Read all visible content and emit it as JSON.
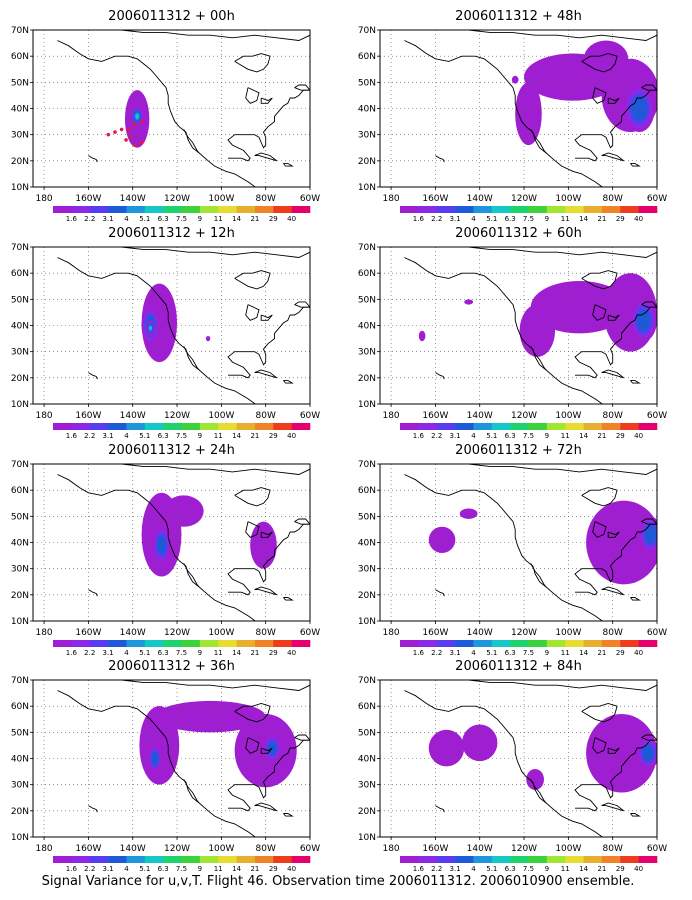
{
  "caption": "Signal Variance for u,v,T. Flight 46. Observation time 2006011312. 2006010900 ensemble.",
  "colorbar": {
    "colors": [
      "#a01ed2",
      "#8c28e6",
      "#5a3cf0",
      "#1e5ad8",
      "#1e96dc",
      "#14c8c8",
      "#1ed26e",
      "#3cd23c",
      "#a0e632",
      "#e6dc32",
      "#e6af2d",
      "#f08228",
      "#f03c1e",
      "#e6006e"
    ],
    "labels": [
      "1.6",
      "2.2",
      "3.1",
      "4",
      "5.1",
      "6.3",
      "7.5",
      "9",
      "11",
      "14",
      "21",
      "29",
      "40"
    ]
  },
  "chart_data": [
    {
      "type": "heatmap",
      "title": "2006011312 + 00h",
      "xlim": [
        175,
        300
      ],
      "ylim": [
        10,
        70
      ],
      "x_ticks": [
        "180",
        "160W",
        "140W",
        "120W",
        "100W",
        "80W",
        "60W"
      ],
      "y_ticks": [
        "10N",
        "20N",
        "30N",
        "40N",
        "50N",
        "60N",
        "70N"
      ],
      "blobs": [
        {
          "lon": 221,
          "lat": 38,
          "rlon": 3.5,
          "rlat": 5,
          "level": 3
        },
        {
          "lon": 222,
          "lat": 36,
          "rlon": 5.5,
          "rlat": 11,
          "level": 0
        },
        {
          "lon": 222,
          "lat": 37,
          "rlon": 3,
          "rlat": 4,
          "level": 5
        }
      ],
      "points": [
        [
          209,
          30
        ],
        [
          212,
          31
        ],
        [
          215,
          32
        ],
        [
          218,
          32
        ],
        [
          221,
          34
        ],
        [
          224,
          35
        ],
        [
          219,
          29
        ],
        [
          217,
          28
        ],
        [
          221,
          26
        ],
        [
          224,
          27
        ]
      ]
    },
    {
      "type": "heatmap",
      "title": "2006011312 + 48h",
      "xlim": [
        175,
        300
      ],
      "ylim": [
        10,
        70
      ],
      "x_ticks": [
        "180",
        "160W",
        "140W",
        "120W",
        "100W",
        "80W",
        "60W"
      ],
      "y_ticks": [
        "10N",
        "20N",
        "30N",
        "40N",
        "50N",
        "60N",
        "70N"
      ],
      "blobs": [
        {
          "lon": 242,
          "lat": 38,
          "rlon": 6,
          "rlat": 12,
          "level": 0
        },
        {
          "lon": 262,
          "lat": 52,
          "rlon": 22,
          "rlat": 9,
          "level": 0
        },
        {
          "lon": 288,
          "lat": 45,
          "rlon": 13,
          "rlat": 14,
          "level": 0
        },
        {
          "lon": 277,
          "lat": 59,
          "rlon": 10,
          "rlat": 7,
          "level": 0
        },
        {
          "lon": 292,
          "lat": 40,
          "rlon": 7,
          "rlat": 9,
          "level": 3
        },
        {
          "lon": 236,
          "lat": 51,
          "rlon": 1.5,
          "rlat": 1.5,
          "level": 0
        }
      ],
      "points": []
    },
    {
      "type": "heatmap",
      "title": "2006011312 + 12h",
      "xlim": [
        175,
        300
      ],
      "ylim": [
        10,
        70
      ],
      "x_ticks": [
        "180",
        "160W",
        "140W",
        "120W",
        "100W",
        "80W",
        "60W"
      ],
      "y_ticks": [
        "10N",
        "20N",
        "30N",
        "40N",
        "50N",
        "60N",
        "70N"
      ],
      "blobs": [
        {
          "lon": 232,
          "lat": 41,
          "rlon": 8,
          "rlat": 15,
          "level": 0
        },
        {
          "lon": 228,
          "lat": 40,
          "rlon": 4,
          "rlat": 7,
          "level": 3
        },
        {
          "lon": 228,
          "lat": 39,
          "rlon": 2,
          "rlat": 3,
          "level": 5
        },
        {
          "lon": 254,
          "lat": 35,
          "rlon": 1,
          "rlat": 1,
          "level": 0
        }
      ],
      "points": []
    },
    {
      "type": "heatmap",
      "title": "2006011312 + 60h",
      "xlim": [
        175,
        300
      ],
      "ylim": [
        10,
        70
      ],
      "x_ticks": [
        "180",
        "160W",
        "140W",
        "120W",
        "100W",
        "80W",
        "60W"
      ],
      "y_ticks": [
        "10N",
        "20N",
        "30N",
        "40N",
        "50N",
        "60N",
        "70N"
      ],
      "blobs": [
        {
          "lon": 246,
          "lat": 38,
          "rlon": 8,
          "rlat": 10,
          "level": 0
        },
        {
          "lon": 265,
          "lat": 47,
          "rlon": 22,
          "rlat": 10,
          "level": 0
        },
        {
          "lon": 288,
          "lat": 45,
          "rlon": 12,
          "rlat": 15,
          "level": 0
        },
        {
          "lon": 294,
          "lat": 42,
          "rlon": 6,
          "rlat": 8,
          "level": 3
        },
        {
          "lon": 194,
          "lat": 36,
          "rlon": 1.5,
          "rlat": 2,
          "level": 0
        },
        {
          "lon": 215,
          "lat": 49,
          "rlon": 2,
          "rlat": 1,
          "level": 0
        }
      ],
      "points": []
    },
    {
      "type": "heatmap",
      "title": "2006011312 + 24h",
      "xlim": [
        175,
        300
      ],
      "ylim": [
        10,
        70
      ],
      "x_ticks": [
        "180",
        "160W",
        "140W",
        "120W",
        "100W",
        "80W",
        "60W"
      ],
      "y_ticks": [
        "10N",
        "20N",
        "30N",
        "40N",
        "50N",
        "60N",
        "70N"
      ],
      "blobs": [
        {
          "lon": 233,
          "lat": 43,
          "rlon": 9,
          "rlat": 16,
          "level": 0
        },
        {
          "lon": 233,
          "lat": 39,
          "rlon": 4,
          "rlat": 7,
          "level": 3
        },
        {
          "lon": 243,
          "lat": 52,
          "rlon": 9,
          "rlat": 6,
          "level": 0
        },
        {
          "lon": 279,
          "lat": 39,
          "rlon": 6,
          "rlat": 9,
          "level": 0
        }
      ],
      "points": []
    },
    {
      "type": "heatmap",
      "title": "2006011312 + 72h",
      "xlim": [
        175,
        300
      ],
      "ylim": [
        10,
        70
      ],
      "x_ticks": [
        "180",
        "160W",
        "140W",
        "120W",
        "100W",
        "80W",
        "60W"
      ],
      "y_ticks": [
        "10N",
        "20N",
        "30N",
        "40N",
        "50N",
        "60N",
        "70N"
      ],
      "blobs": [
        {
          "lon": 285,
          "lat": 40,
          "rlon": 17,
          "rlat": 16,
          "level": 0
        },
        {
          "lon": 297,
          "lat": 43,
          "rlon": 5,
          "rlat": 7,
          "level": 3
        },
        {
          "lon": 203,
          "lat": 41,
          "rlon": 6,
          "rlat": 5,
          "level": 0
        },
        {
          "lon": 215,
          "lat": 51,
          "rlon": 4,
          "rlat": 2,
          "level": 0
        }
      ],
      "points": []
    },
    {
      "type": "heatmap",
      "title": "2006011312 + 36h",
      "xlim": [
        175,
        300
      ],
      "ylim": [
        10,
        70
      ],
      "x_ticks": [
        "180",
        "160W",
        "140W",
        "120W",
        "100W",
        "80W",
        "60W"
      ],
      "y_ticks": [
        "10N",
        "20N",
        "30N",
        "40N",
        "50N",
        "60N",
        "70N"
      ],
      "blobs": [
        {
          "lon": 232,
          "lat": 45,
          "rlon": 9,
          "rlat": 15,
          "level": 0
        },
        {
          "lon": 255,
          "lat": 56,
          "rlon": 25,
          "rlat": 6,
          "level": 0
        },
        {
          "lon": 280,
          "lat": 43,
          "rlon": 14,
          "rlat": 14,
          "level": 0
        },
        {
          "lon": 230,
          "lat": 40,
          "rlon": 3,
          "rlat": 5,
          "level": 3
        },
        {
          "lon": 283,
          "lat": 44,
          "rlon": 4,
          "rlat": 5,
          "level": 3
        }
      ],
      "points": []
    },
    {
      "type": "heatmap",
      "title": "2006011312 + 84h",
      "xlim": [
        175,
        300
      ],
      "ylim": [
        10,
        70
      ],
      "x_ticks": [
        "180",
        "160W",
        "140W",
        "120W",
        "100W",
        "80W",
        "60W"
      ],
      "y_ticks": [
        "10N",
        "20N",
        "30N",
        "40N",
        "50N",
        "60N",
        "70N"
      ],
      "blobs": [
        {
          "lon": 205,
          "lat": 44,
          "rlon": 8,
          "rlat": 7,
          "level": 0
        },
        {
          "lon": 220,
          "lat": 46,
          "rlon": 8,
          "rlat": 7,
          "level": 0
        },
        {
          "lon": 284,
          "lat": 42,
          "rlon": 16,
          "rlat": 15,
          "level": 0
        },
        {
          "lon": 296,
          "lat": 42,
          "rlon": 5,
          "rlat": 6,
          "level": 3
        },
        {
          "lon": 245,
          "lat": 32,
          "rlon": 4,
          "rlat": 4,
          "level": 0
        }
      ],
      "points": []
    }
  ]
}
